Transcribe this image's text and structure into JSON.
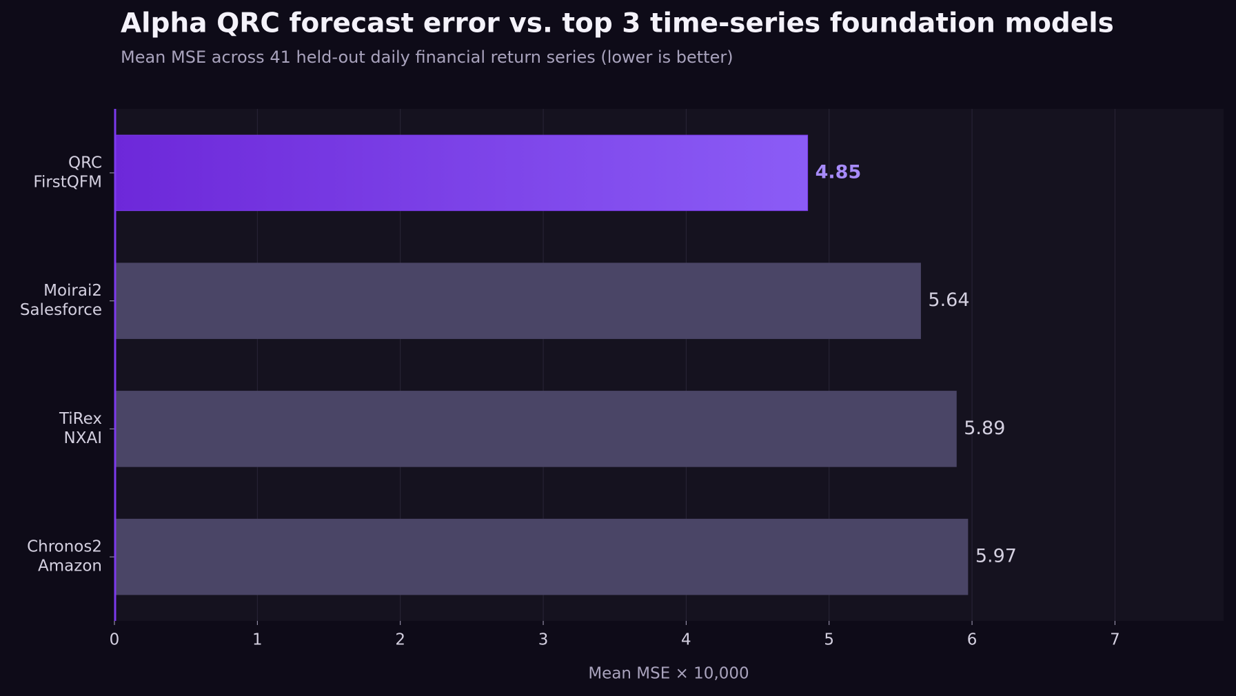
{
  "chart_data": {
    "type": "barh",
    "title": "Alpha QRC forecast error vs. top 3 time-series foundation models",
    "subtitle": "Mean MSE across 41 held-out daily financial return series (lower is better)",
    "x_label": "Mean MSE × 10,000",
    "categories": [
      [
        "QRC",
        "FirstQFM"
      ],
      [
        "Moirai2",
        "Salesforce"
      ],
      [
        "TiRex",
        "NXAI"
      ],
      [
        "Chronos2",
        "Amazon"
      ]
    ],
    "values": [
      4.85,
      5.64,
      5.89,
      5.97
    ],
    "colors": [
      "#7c3aed",
      "#4a4566",
      "#4a4566",
      "#4a4566"
    ],
    "label_colors": [
      "#a78bfa",
      "#d4d0e0",
      "#d4d0e0",
      "#d4d0e0"
    ],
    "xlim": [
      0,
      7.76
    ],
    "xticks": [
      0,
      1,
      2,
      3,
      4,
      5,
      6,
      7
    ],
    "grid": true
  }
}
